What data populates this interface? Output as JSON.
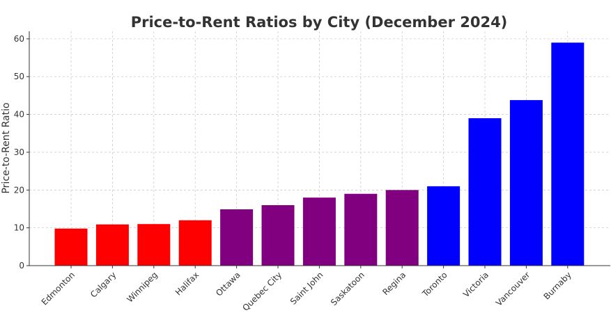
{
  "chart_data": {
    "type": "bar",
    "title": "Price-to-Rent Ratios by City (December 2024)",
    "xlabel": "",
    "ylabel": "Price-to-Rent Ratio",
    "ylim": [
      0,
      62
    ],
    "yticks": [
      0,
      10,
      20,
      30,
      40,
      50,
      60
    ],
    "grid": true,
    "categories": [
      "Edmonton",
      "Calgary",
      "Winnipeg",
      "Halifax",
      "Ottawa",
      "Quebec City",
      "Saint John",
      "Saskatoon",
      "Regina",
      "Toronto",
      "Victoria",
      "Vancouver",
      "Burnaby"
    ],
    "values": [
      9.8,
      10.9,
      11.0,
      12.0,
      14.9,
      16.0,
      18.0,
      19.0,
      20.0,
      21.0,
      39.0,
      43.8,
      59.0
    ],
    "bar_colors": [
      "#ff0000",
      "#ff0000",
      "#ff0000",
      "#ff0000",
      "#800080",
      "#800080",
      "#800080",
      "#800080",
      "#800080",
      "#0000ff",
      "#0000ff",
      "#0000ff",
      "#0000ff"
    ]
  }
}
